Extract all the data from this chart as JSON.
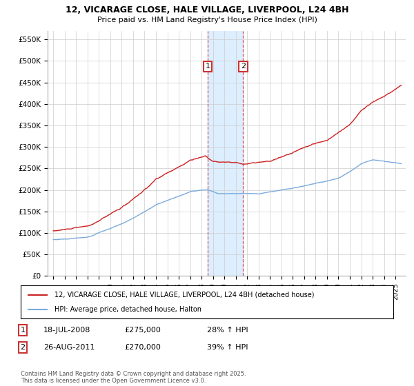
{
  "title_line1": "12, VICARAGE CLOSE, HALE VILLAGE, LIVERPOOL, L24 4BH",
  "title_line2": "Price paid vs. HM Land Registry's House Price Index (HPI)",
  "ylim": [
    0,
    570000
  ],
  "yticks": [
    0,
    50000,
    100000,
    150000,
    200000,
    250000,
    300000,
    350000,
    400000,
    450000,
    500000,
    550000
  ],
  "ytick_labels": [
    "£0",
    "£50K",
    "£100K",
    "£150K",
    "£200K",
    "£250K",
    "£300K",
    "£350K",
    "£400K",
    "£450K",
    "£500K",
    "£550K"
  ],
  "sale1_yr": 2008.54,
  "sale2_yr": 2011.65,
  "hpi_color": "#7aaadd",
  "price_color": "#cc2222",
  "highlight_color": "#ddeeff",
  "legend_line1": "12, VICARAGE CLOSE, HALE VILLAGE, LIVERPOOL, L24 4BH (detached house)",
  "legend_line2": "HPI: Average price, detached house, Halton",
  "footer": "Contains HM Land Registry data © Crown copyright and database right 2025.\nThis data is licensed under the Open Government Licence v3.0.",
  "table_row1": [
    "1",
    "18-JUL-2008",
    "£275,000",
    "28% ↑ HPI"
  ],
  "table_row2": [
    "2",
    "26-AUG-2011",
    "£270,000",
    "39% ↑ HPI"
  ]
}
